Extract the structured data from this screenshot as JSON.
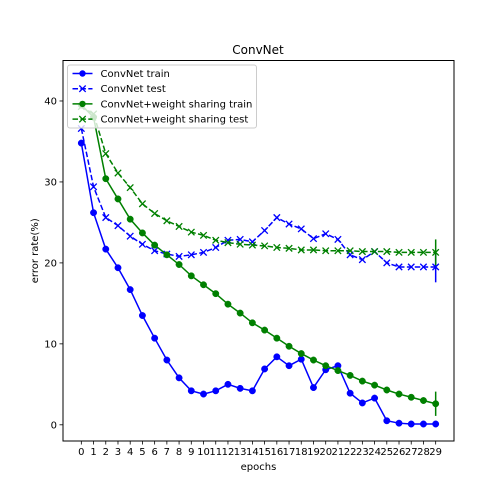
{
  "chart_data": {
    "type": "line",
    "title": "ConvNet",
    "xlabel": "epochs",
    "ylabel": "error rate(%)",
    "xlim": [
      -1.5,
      30.5
    ],
    "ylim": [
      -2,
      45
    ],
    "x_ticks": [
      0,
      1,
      2,
      3,
      4,
      5,
      6,
      7,
      8,
      9,
      10,
      11,
      12,
      13,
      14,
      15,
      16,
      17,
      18,
      19,
      20,
      21,
      22,
      23,
      24,
      25,
      26,
      27,
      28,
      29
    ],
    "y_ticks": [
      0,
      10,
      20,
      30,
      40
    ],
    "grid": false,
    "legend_position": "top-left",
    "x": [
      0,
      1,
      2,
      3,
      4,
      5,
      6,
      7,
      8,
      9,
      10,
      11,
      12,
      13,
      14,
      15,
      16,
      17,
      18,
      19,
      20,
      21,
      22,
      23,
      24,
      25,
      26,
      27,
      28,
      29
    ],
    "series": [
      {
        "name": "ConvNet train",
        "color": "#0000ff",
        "linestyle": "solid",
        "marker": "circle",
        "values": [
          34.8,
          26.2,
          21.7,
          19.4,
          16.7,
          13.5,
          10.7,
          8.0,
          5.8,
          4.2,
          3.8,
          4.2,
          5.0,
          4.5,
          4.2,
          6.9,
          8.4,
          7.3,
          8.1,
          4.6,
          6.8,
          7.3,
          3.9,
          2.7,
          3.3,
          0.5,
          0.2,
          0.1,
          0.1,
          0.1
        ]
      },
      {
        "name": "ConvNet test",
        "color": "#0000ff",
        "linestyle": "dashed",
        "marker": "x",
        "values": [
          36.6,
          29.4,
          25.6,
          24.6,
          23.3,
          22.3,
          21.5,
          21.1,
          20.8,
          21.0,
          21.3,
          21.9,
          22.8,
          22.9,
          22.6,
          24.0,
          25.6,
          24.8,
          24.2,
          23.0,
          23.6,
          22.9,
          21.0,
          20.4,
          21.4,
          20.0,
          19.5,
          19.5,
          19.5,
          19.5
        ],
        "error_bar": {
          "x": 29,
          "low": 17.6,
          "high": 21.4
        }
      },
      {
        "name": "ConvNet+weight sharing train",
        "color": "#008000",
        "linestyle": "solid",
        "marker": "circle",
        "values": [
          39.5,
          38.0,
          30.4,
          27.9,
          25.4,
          23.7,
          22.2,
          21.0,
          19.8,
          18.4,
          17.3,
          16.2,
          14.9,
          13.8,
          12.6,
          11.7,
          10.7,
          9.7,
          8.8,
          8.0,
          7.3,
          6.7,
          6.1,
          5.4,
          4.9,
          4.3,
          3.8,
          3.4,
          3.0,
          2.6
        ],
        "error_bar": {
          "x": 29,
          "low": 1.1,
          "high": 4.1
        }
      },
      {
        "name": "ConvNet+weight sharing test",
        "color": "#008000",
        "linestyle": "dashed",
        "marker": "x",
        "values": [
          39.3,
          38.4,
          33.5,
          31.1,
          29.3,
          27.3,
          26.1,
          25.2,
          24.5,
          23.8,
          23.4,
          22.8,
          22.5,
          22.3,
          22.2,
          22.1,
          21.9,
          21.8,
          21.6,
          21.6,
          21.5,
          21.5,
          21.5,
          21.4,
          21.4,
          21.4,
          21.3,
          21.3,
          21.3,
          21.3
        ],
        "error_bar": {
          "x": 29,
          "low": 19.7,
          "high": 22.9
        }
      }
    ]
  }
}
